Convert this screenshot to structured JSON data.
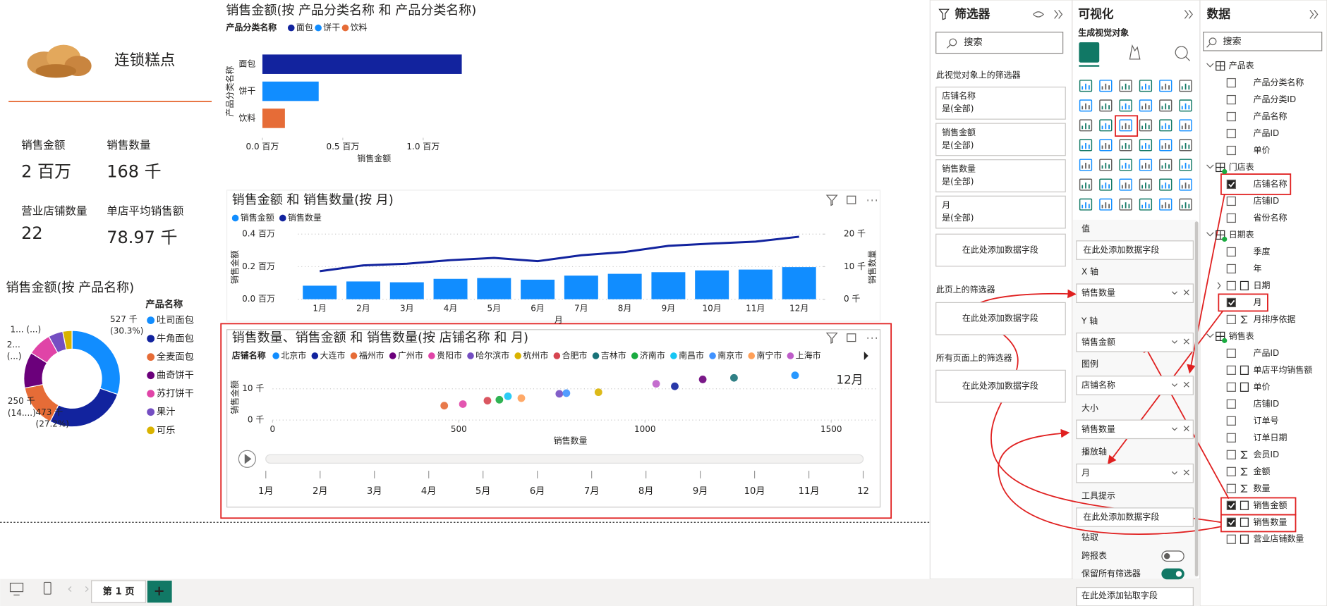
{
  "report": {
    "logo_title": "连锁糕点",
    "cards": [
      {
        "label": "销售金额",
        "value": "2 百万"
      },
      {
        "label": "销售数量",
        "value": "168 千"
      },
      {
        "label": "营业店铺数量",
        "value": "22"
      },
      {
        "label": "单店平均销售额",
        "value": "78.97 千"
      }
    ]
  },
  "chart_data": [
    {
      "type": "bar",
      "title": "销售金额(按 产品分类名称 和 产品分类名称)",
      "legend_title": "产品分类名称",
      "categories": [
        "面包",
        "饼干",
        "饮料"
      ],
      "colors": [
        "#12239E",
        "#118DFF",
        "#E66C37"
      ],
      "values": [
        1.24,
        0.35,
        0.14
      ],
      "xlim": [
        0,
        1.3
      ],
      "xticks": [
        {
          "value": 0,
          "label": "0.0 百万"
        },
        {
          "value": 0.5,
          "label": "0.5 百万"
        },
        {
          "value": 1,
          "label": "1.0 百万"
        }
      ],
      "x_label": "销售金额",
      "y_label": "产品分类名称"
    },
    {
      "type": "bar_line",
      "title": "销售金额 和 销售数量(按 月)",
      "categories": [
        "1月",
        "2月",
        "3月",
        "4月",
        "5月",
        "6月",
        "7月",
        "8月",
        "9月",
        "10月",
        "11月",
        "12月"
      ],
      "series": [
        {
          "name": "销售金额",
          "color": "#118DFF",
          "values": [
            0.083,
            0.109,
            0.104,
            0.125,
            0.13,
            0.12,
            0.145,
            0.156,
            0.166,
            0.177,
            0.182,
            0.197
          ]
        },
        {
          "name": "销售数量",
          "color": "#12239E",
          "axis": "y2",
          "values": [
            8.6,
            10.4,
            10.9,
            12,
            12.7,
            11.7,
            13.5,
            14.5,
            16.4,
            17.1,
            17.7,
            19.2
          ]
        }
      ],
      "ylim": [
        0,
        0.4
      ],
      "yticks": [
        {
          "value": 0,
          "label": "0.0 百万"
        },
        {
          "value": 0.2,
          "label": "0.2 百万"
        },
        {
          "value": 0.4,
          "label": "0.4 百万"
        }
      ],
      "y2lim": [
        0,
        20
      ],
      "y2ticks": [
        {
          "value": 0,
          "label": "0 千"
        },
        {
          "value": 10,
          "label": "10 千"
        },
        {
          "value": 20,
          "label": "20 千"
        }
      ],
      "grid": true,
      "y_label": "销售金额",
      "y2_label": "销售数量",
      "x_label": "月"
    },
    {
      "type": "pie",
      "title": "销售金额(按 产品名称)",
      "legend_title": "产品名称",
      "categories": [
        "吐司面包",
        "牛角面包",
        "全麦面包",
        "曲奇饼干",
        "苏打饼干",
        "果汁",
        "可乐"
      ],
      "colors": [
        "#118DFF",
        "#12239E",
        "#E66C37",
        "#6B007B",
        "#E044A7",
        "#744EC2",
        "#D9B300"
      ],
      "values": [
        527,
        473,
        250,
        210,
        140,
        85,
        54
      ],
      "value_labels": [
        [
          "527 千",
          "(30.3%)"
        ],
        [
          "473 千",
          "(27.2%)"
        ],
        [
          "250 千",
          "(14....)"
        ],
        [
          "2...",
          "(...)"
        ],
        [
          "1... (...)"
        ]
      ]
    },
    {
      "type": "scatter",
      "title": "销售数量、销售金额 和 销售数量(按 店铺名称 和 月)",
      "legend_title": "店铺名称",
      "series": [
        {
          "name": "北京市",
          "color": "#118DFF",
          "x": [
            1403
          ],
          "values": [
            14.3
          ]
        },
        {
          "name": "大连市",
          "color": "#12239E",
          "x": [
            1080
          ],
          "values": [
            10.8
          ]
        },
        {
          "name": "福州市",
          "color": "#E66C37",
          "x": [
            461
          ],
          "values": [
            4.6
          ]
        },
        {
          "name": "广州市",
          "color": "#6B007B",
          "x": [
            1155
          ],
          "values": [
            13
          ]
        },
        {
          "name": "贵阳市",
          "color": "#E044A7",
          "x": [
            511
          ],
          "values": [
            5.1
          ]
        },
        {
          "name": "哈尔滨市",
          "color": "#744EC2",
          "x": [
            770
          ],
          "values": [
            8.4
          ]
        },
        {
          "name": "杭州市",
          "color": "#D9B300",
          "x": [
            875
          ],
          "values": [
            8.9
          ]
        },
        {
          "name": "合肥市",
          "color": "#D64550",
          "x": [
            577
          ],
          "values": [
            6.2
          ]
        },
        {
          "name": "吉林市",
          "color": "#197278",
          "x": [
            1239
          ],
          "values": [
            13.5
          ]
        },
        {
          "name": "济南市",
          "color": "#1AAB40",
          "x": [
            609
          ],
          "values": [
            6.5
          ]
        },
        {
          "name": "南昌市",
          "color": "#15C6F4",
          "x": [
            632
          ],
          "values": [
            7.6
          ]
        },
        {
          "name": "南京市",
          "color": "#4092FF",
          "x": [
            789
          ],
          "values": [
            8.6
          ]
        },
        {
          "name": "南宁市",
          "color": "#FFA058",
          "x": [
            668
          ],
          "values": [
            7
          ]
        },
        {
          "name": "上海市",
          "color": "#BE5DC9",
          "x": [
            1030
          ],
          "values": [
            11.6
          ]
        }
      ],
      "xlim": [
        0,
        1620
      ],
      "xticks": [
        0,
        500,
        1000,
        1500
      ],
      "ylim": [
        0,
        15
      ],
      "yticks": [
        {
          "value": 0,
          "label": "0 千"
        },
        {
          "value": 10,
          "label": "10 千"
        }
      ],
      "grid": true,
      "x_label": "销售数量",
      "y_label": "销售金额",
      "play_label": "12月",
      "play_ticks": [
        "1月",
        "2月",
        "3月",
        "4月",
        "5月",
        "6月",
        "7月",
        "8月",
        "9月",
        "10月",
        "11月",
        "12"
      ]
    }
  ],
  "panels": {
    "filters": {
      "title": "筛选器",
      "search": "搜索",
      "visual_section": "此视觉对象上的筛选器",
      "visual_filters": [
        {
          "field": "店铺名称",
          "state": "是(全部)"
        },
        {
          "field": "销售金额",
          "state": "是(全部)"
        },
        {
          "field": "销售数量",
          "state": "是(全部)"
        },
        {
          "field": "月",
          "state": "是(全部)"
        }
      ],
      "visual_add": "在此处添加数据字段",
      "page_section": "此页上的筛选器",
      "page_add": "在此处添加数据字段",
      "all_section": "所有页面上的筛选器",
      "all_add": "在此处添加数据字段"
    },
    "visualizations": {
      "title": "可视化",
      "build": "生成视觉对象",
      "wells": [
        {
          "label": "值",
          "placeholder": "在此处添加数据字段"
        },
        {
          "label": "X 轴",
          "field": "销售数量"
        },
        {
          "label": "Y 轴",
          "field": "销售金额"
        },
        {
          "label": "图例",
          "field": "店铺名称"
        },
        {
          "label": "大小",
          "field": "销售数量"
        },
        {
          "label": "播放轴",
          "field": "月"
        },
        {
          "label": "工具提示",
          "placeholder": "在此处添加数据字段"
        }
      ],
      "drill": {
        "title": "钻取",
        "cross_report": "跨报表",
        "cross_report_on": false,
        "keep_filters": "保留所有筛选器",
        "keep_filters_on": true,
        "placeholder": "在此处添加钻取字段"
      }
    },
    "data": {
      "title": "数据",
      "search": "搜索",
      "tables": [
        {
          "name": "产品表",
          "fields": [
            {
              "name": "产品分类名称"
            },
            {
              "name": "产品分类ID"
            },
            {
              "name": "产品名称"
            },
            {
              "name": "产品ID"
            },
            {
              "name": "单价"
            }
          ]
        },
        {
          "name": "门店表",
          "in_use": true,
          "fields": [
            {
              "name": "店铺名称",
              "checked": true
            },
            {
              "name": "店铺ID"
            },
            {
              "name": "省份名称"
            }
          ]
        },
        {
          "name": "日期表",
          "in_use": true,
          "fields": [
            {
              "name": "季度"
            },
            {
              "name": "年"
            },
            {
              "name": "日期",
              "icon": "date"
            },
            {
              "name": "月",
              "checked": true
            },
            {
              "name": "月排序依据",
              "icon": "sum"
            }
          ]
        },
        {
          "name": "销售表",
          "in_use": true,
          "fields": [
            {
              "name": "产品ID"
            },
            {
              "name": "单店平均销售额",
              "icon": "calc"
            },
            {
              "name": "单价",
              "icon": "calc"
            },
            {
              "name": "店铺ID"
            },
            {
              "name": "订单号"
            },
            {
              "name": "订单日期"
            },
            {
              "name": "会员ID",
              "icon": "sum"
            },
            {
              "name": "金额",
              "icon": "sum"
            },
            {
              "name": "数量",
              "icon": "sum"
            },
            {
              "name": "销售金额",
              "icon": "calc",
              "checked": true
            },
            {
              "name": "销售数量",
              "icon": "calc",
              "checked": true
            },
            {
              "name": "营业店铺数量",
              "icon": "calc"
            }
          ]
        }
      ]
    }
  },
  "bottom": {
    "page_tab": "第 1 页",
    "add_page": "+"
  }
}
